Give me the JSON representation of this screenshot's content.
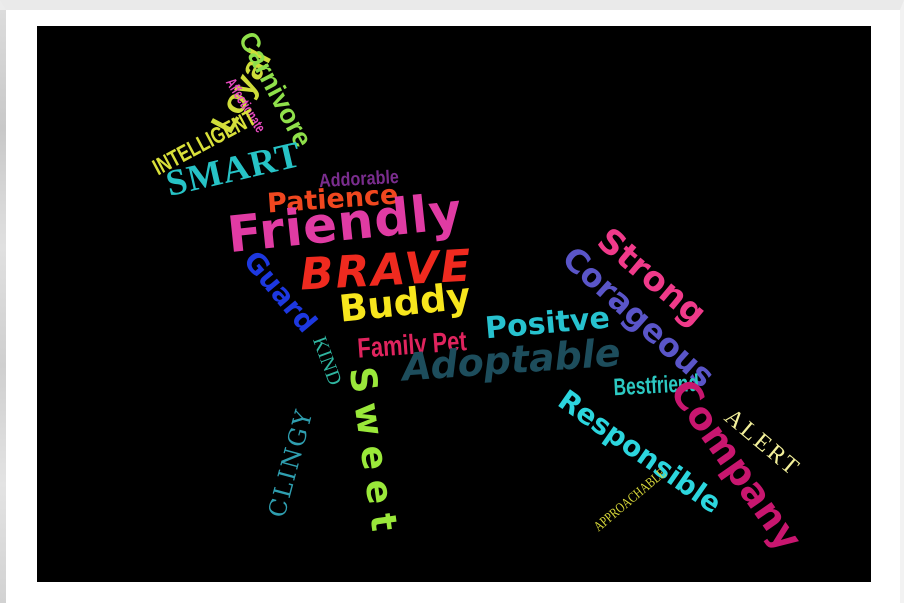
{
  "colors": {
    "background": "#000000",
    "frame": "#ffffff"
  },
  "words": [
    {
      "id": "loyal",
      "text": "Loyal",
      "color": "#cfdd3a"
    },
    {
      "id": "carnivore",
      "text": "Carnivore",
      "color": "#8fe04a"
    },
    {
      "id": "affectionate",
      "text": "Affectionate",
      "color": "#e84ac0"
    },
    {
      "id": "intelligent",
      "text": "INTELLIGENT",
      "color": "#d9e03a"
    },
    {
      "id": "smart",
      "text": "SMART",
      "color": "#27c3c6"
    },
    {
      "id": "addorable",
      "text": "Addorable",
      "color": "#7a2d8e"
    },
    {
      "id": "patience",
      "text": "Patience",
      "color": "#f0471f"
    },
    {
      "id": "friendly",
      "text": "Friendly",
      "color": "#e03ba3"
    },
    {
      "id": "brave",
      "text": "BRAVE",
      "color": "#ef2a1f"
    },
    {
      "id": "guard",
      "text": "Guard",
      "color": "#1d38e0"
    },
    {
      "id": "buddy",
      "text": "Buddy",
      "color": "#f7e61d"
    },
    {
      "id": "kind",
      "text": "KIND",
      "color": "#2fb5a0"
    },
    {
      "id": "family-pet",
      "text": "Family Pet",
      "color": "#e0245e"
    },
    {
      "id": "positve",
      "text": "Positve",
      "color": "#27c2cf"
    },
    {
      "id": "adoptable",
      "text": "Adoptable",
      "color": "#1d4d5c"
    },
    {
      "id": "strong",
      "text": "Strong",
      "color": "#f03a8a"
    },
    {
      "id": "corageous",
      "text": "Corageous",
      "color": "#5a55c8"
    },
    {
      "id": "sweet",
      "text": "Sweet",
      "color": "#9ae83a"
    },
    {
      "id": "clingy",
      "text": "CLINGY",
      "color": "#2f9fb0"
    },
    {
      "id": "bestfriend",
      "text": "Bestfriend",
      "color": "#2cc9c2"
    },
    {
      "id": "responsible",
      "text": "Responsible",
      "color": "#2cd6de"
    },
    {
      "id": "company",
      "text": "Company",
      "color": "#c8166f"
    },
    {
      "id": "alert",
      "text": "ALERT",
      "color": "#f3f09a"
    },
    {
      "id": "approachable",
      "text": "APPROACHABLE",
      "color": "#d8d83a"
    }
  ]
}
